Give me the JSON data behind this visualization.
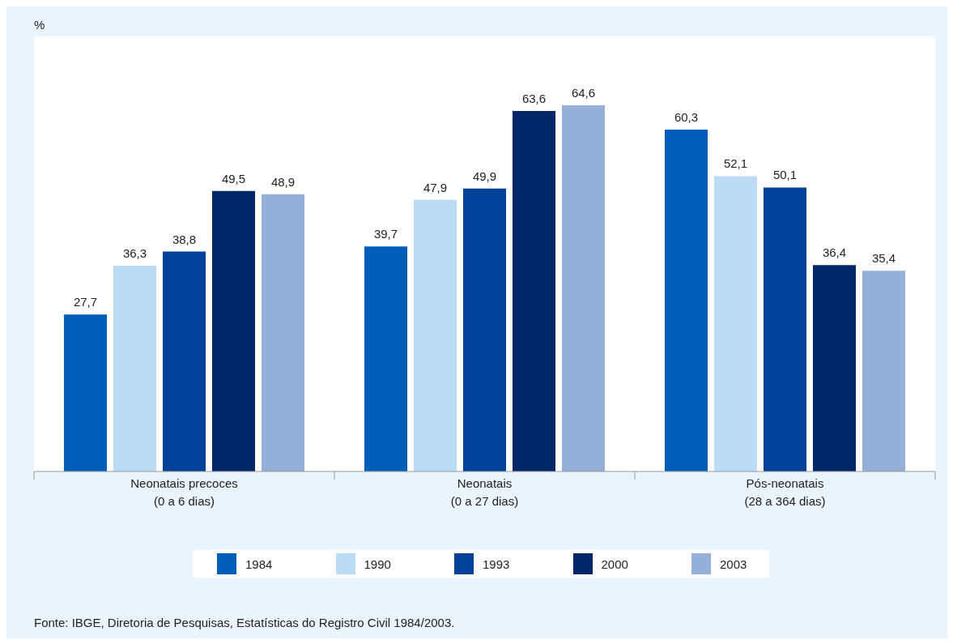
{
  "chart_data": {
    "type": "bar",
    "categories": [
      "Neonatais precoces\n(0 a 6 dias)",
      "Neonatais\n(0 a 27 dias)",
      "Pós-neonatais\n(28 a 364 dias)"
    ],
    "series": [
      {
        "name": "1984",
        "color": "#005eb8",
        "values": [
          27.7,
          39.7,
          60.3
        ],
        "value_labels": [
          "27,7",
          "39,7",
          "60,3"
        ]
      },
      {
        "name": "1990",
        "color": "#bcdcf5",
        "values": [
          36.3,
          47.9,
          52.1
        ],
        "value_labels": [
          "36,3",
          "47,9",
          "52,1"
        ]
      },
      {
        "name": "1993",
        "color": "#00419a",
        "values": [
          38.8,
          49.9,
          50.1
        ],
        "value_labels": [
          "38,8",
          "49,9",
          "50,1"
        ]
      },
      {
        "name": "2000",
        "color": "#002868",
        "values": [
          49.5,
          63.6,
          36.4
        ],
        "value_labels": [
          "49,5",
          "63,6",
          "36,4"
        ]
      },
      {
        "name": "2003",
        "color": "#94b0d8",
        "values": [
          48.9,
          64.6,
          35.4
        ],
        "value_labels": [
          "48,9",
          "64,6",
          "35,4"
        ]
      }
    ],
    "legend": "bottom",
    "tick_labels": "x",
    "annotations": [
      "%",
      "Fonte: IBGE, Diretoria de Pesquisas, Estatísticas do Registro Civil 1984/2003."
    ]
  }
}
